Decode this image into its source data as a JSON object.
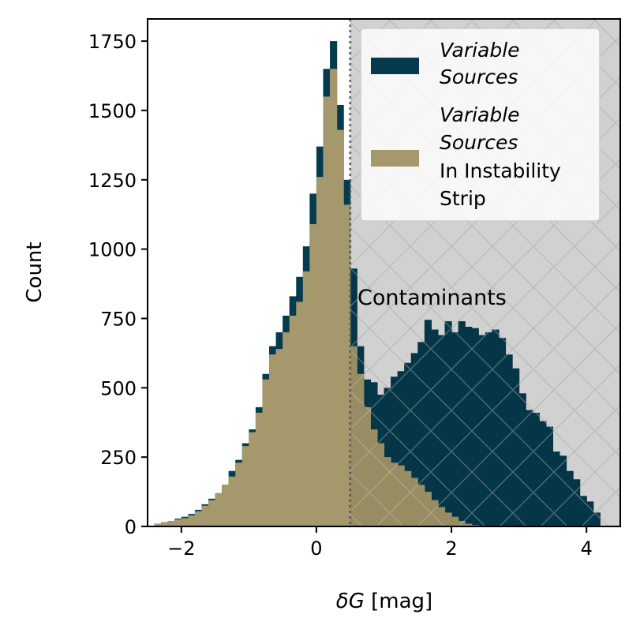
{
  "chart_data": {
    "type": "histogram",
    "xlabel_symbol": "δG",
    "xlabel_unit": " [mag]",
    "ylabel": "Count",
    "xlim": [
      -2.5,
      4.5
    ],
    "ylim": [
      0,
      1830
    ],
    "xticks": [
      -2,
      0,
      2,
      4
    ],
    "xtick_labels": [
      "−2",
      "0",
      "2",
      "4"
    ],
    "yticks": [
      0,
      250,
      500,
      750,
      1000,
      1250,
      1500,
      1750
    ],
    "yticks_labels": [
      "0",
      "250",
      "500",
      "750",
      "1000",
      "1250",
      "1500",
      "1750"
    ],
    "bin_start": -2.4,
    "bin_width": 0.1,
    "threshold": 0.5,
    "contaminant_region": [
      0.5,
      4.5
    ],
    "annotation": "Contaminants",
    "colors": {
      "variable": "#063b4f",
      "instability": "#a5986c",
      "region": "#e3e3e3",
      "hatch": "#c8c8c8",
      "threshold_line": "#555555"
    },
    "series": [
      {
        "name": "Variable Sources",
        "values": [
          10,
          15,
          20,
          28,
          35,
          45,
          60,
          80,
          100,
          120,
          150,
          200,
          240,
          300,
          350,
          430,
          550,
          650,
          700,
          760,
          830,
          900,
          1010,
          1200,
          1370,
          1650,
          1750,
          1520,
          1250,
          930,
          650,
          530,
          520,
          475,
          500,
          540,
          560,
          590,
          625,
          665,
          745,
          710,
          690,
          740,
          700,
          740,
          720,
          715,
          690,
          700,
          710,
          680,
          620,
          570,
          480,
          420,
          410,
          380,
          360,
          270,
          255,
          200,
          170,
          110,
          90,
          50,
          0
        ],
        "legend_lines": [
          "Variable",
          "Sources"
        ]
      },
      {
        "name": "Variable Sources In Instability Strip",
        "values": [
          10,
          15,
          20,
          25,
          30,
          40,
          55,
          75,
          95,
          120,
          150,
          180,
          230,
          290,
          340,
          410,
          530,
          620,
          640,
          700,
          760,
          810,
          920,
          1090,
          1260,
          1550,
          1650,
          1430,
          1160,
          650,
          550,
          430,
          350,
          300,
          250,
          230,
          220,
          200,
          175,
          150,
          125,
          95,
          70,
          50,
          35,
          20,
          10,
          5,
          0,
          0,
          0,
          0,
          0,
          0,
          0,
          0,
          0,
          0,
          0,
          0,
          0,
          0,
          0,
          0,
          0,
          0,
          0
        ],
        "legend_lines": [
          "Variable",
          "Sources",
          "In Instability",
          "Strip"
        ]
      }
    ]
  }
}
